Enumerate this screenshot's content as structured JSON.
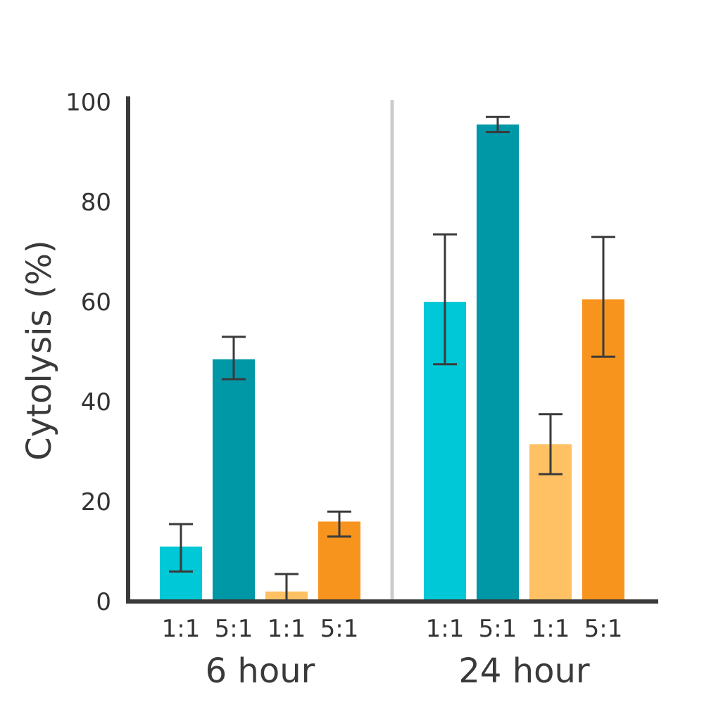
{
  "chart_data": {
    "type": "bar",
    "title": "",
    "xlabel": "",
    "ylabel": "Cytolysis (%)",
    "ylim": [
      0,
      100
    ],
    "yticks": [
      "0",
      "20",
      "40",
      "60",
      "80",
      "100"
    ],
    "grid": false,
    "groups": [
      {
        "label": "6 hour",
        "bars": [
          {
            "label": "1:1",
            "value": 11,
            "error_low": 6,
            "error_high": 15.5,
            "color": "#00C8D6"
          },
          {
            "label": "5:1",
            "value": 48.5,
            "error_low": 44.5,
            "error_high": 53,
            "color": "#0097A7"
          },
          {
            "label": "1:1",
            "value": 2,
            "error_low": 0,
            "error_high": 5.5,
            "color": "#FFC163"
          },
          {
            "label": "5:1",
            "value": 16,
            "error_low": 13,
            "error_high": 18,
            "color": "#F7941E"
          }
        ]
      },
      {
        "label": "24 hour",
        "bars": [
          {
            "label": "1:1",
            "value": 60,
            "error_low": 47.5,
            "error_high": 73.5,
            "color": "#00C8D6"
          },
          {
            "label": "5:1",
            "value": 95.5,
            "error_low": 94,
            "error_high": 97,
            "color": "#0097A7"
          },
          {
            "label": "1:1",
            "value": 31.5,
            "error_low": 25.5,
            "error_high": 37.5,
            "color": "#FFC163"
          },
          {
            "label": "5:1",
            "value": 60.5,
            "error_low": 49,
            "error_high": 73,
            "color": "#F7941E"
          }
        ]
      }
    ]
  },
  "colors": {
    "axis": "#3a3a3a",
    "divider": "#cccccc",
    "error_bar": "#3a3a3a"
  }
}
